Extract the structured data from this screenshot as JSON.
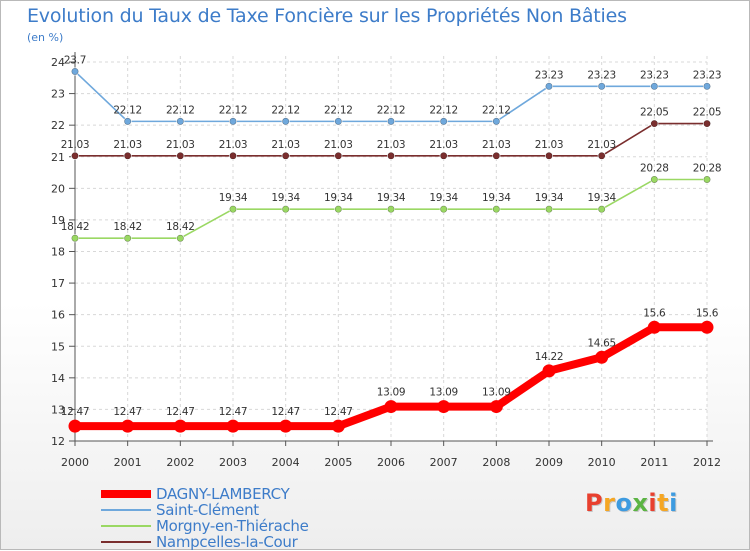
{
  "header": {
    "title": "Evolution du Taux de Taxe Foncière sur les Propriétés Non Bâties",
    "unit": "(en %)"
  },
  "logo": {
    "text": "Proxiti",
    "colors": [
      "#e8402f",
      "#f5a623",
      "#3d9be0",
      "#5bb443",
      "#e8402f",
      "#f5a623",
      "#3d9be0"
    ]
  },
  "chart_data": {
    "type": "line",
    "title": "Evolution du Taux de Taxe Foncière sur les Propriétés Non Bâties",
    "ylabel": "(en %)",
    "xlabel": "",
    "x": [
      "2000",
      "2001",
      "2002",
      "2003",
      "2004",
      "2005",
      "2006",
      "2007",
      "2008",
      "2009",
      "2010",
      "2011",
      "2012"
    ],
    "ylim": [
      12,
      24
    ],
    "yticks": [
      12,
      13,
      14,
      15,
      16,
      17,
      18,
      19,
      20,
      21,
      22,
      23,
      24
    ],
    "grid": true,
    "legend": "bottom-left",
    "series": [
      {
        "name": "DAGNY-LAMBERCY",
        "color": "#ff0000",
        "width": "thick",
        "values": [
          12.47,
          12.47,
          12.47,
          12.47,
          12.47,
          12.47,
          13.09,
          13.09,
          13.09,
          14.22,
          14.65,
          15.6,
          15.6
        ],
        "labels": [
          "12.47",
          "12.47",
          "12.47",
          "12.47",
          "12.47",
          "12.47",
          "13.09",
          "13.09",
          "13.09",
          "14.22",
          "14.65",
          "15.6",
          "15.6"
        ]
      },
      {
        "name": "Saint-Clément",
        "color": "#6fa8dc",
        "width": "thin",
        "values": [
          23.7,
          22.12,
          22.12,
          22.12,
          22.12,
          22.12,
          22.12,
          22.12,
          22.12,
          23.23,
          23.23,
          23.23,
          23.23
        ],
        "labels": [
          "23.7",
          "22.12",
          "22.12",
          "22.12",
          "22.12",
          "22.12",
          "22.12",
          "22.12",
          "22.12",
          "23.23",
          "23.23",
          "23.23",
          "23.23"
        ]
      },
      {
        "name": "Morgny-en-Thiérache",
        "color": "#9ad863",
        "width": "thin",
        "values": [
          18.42,
          18.42,
          18.42,
          19.34,
          19.34,
          19.34,
          19.34,
          19.34,
          19.34,
          19.34,
          19.34,
          20.28,
          20.28
        ],
        "labels": [
          "18.42",
          "18.42",
          "18.42",
          "19.34",
          "19.34",
          "19.34",
          "19.34",
          "19.34",
          "19.34",
          "19.34",
          "19.34",
          "20.28",
          "20.28"
        ]
      },
      {
        "name": "Nampcelles-la-Cour",
        "color": "#7a2e2e",
        "width": "thin",
        "values": [
          21.03,
          21.03,
          21.03,
          21.03,
          21.03,
          21.03,
          21.03,
          21.03,
          21.03,
          21.03,
          21.03,
          22.05,
          22.05
        ],
        "labels": [
          "21.03",
          "21.03",
          "21.03",
          "21.03",
          "21.03",
          "21.03",
          "21.03",
          "21.03",
          "21.03",
          "21.03",
          "21.03",
          "22.05",
          "22.05"
        ]
      }
    ]
  }
}
